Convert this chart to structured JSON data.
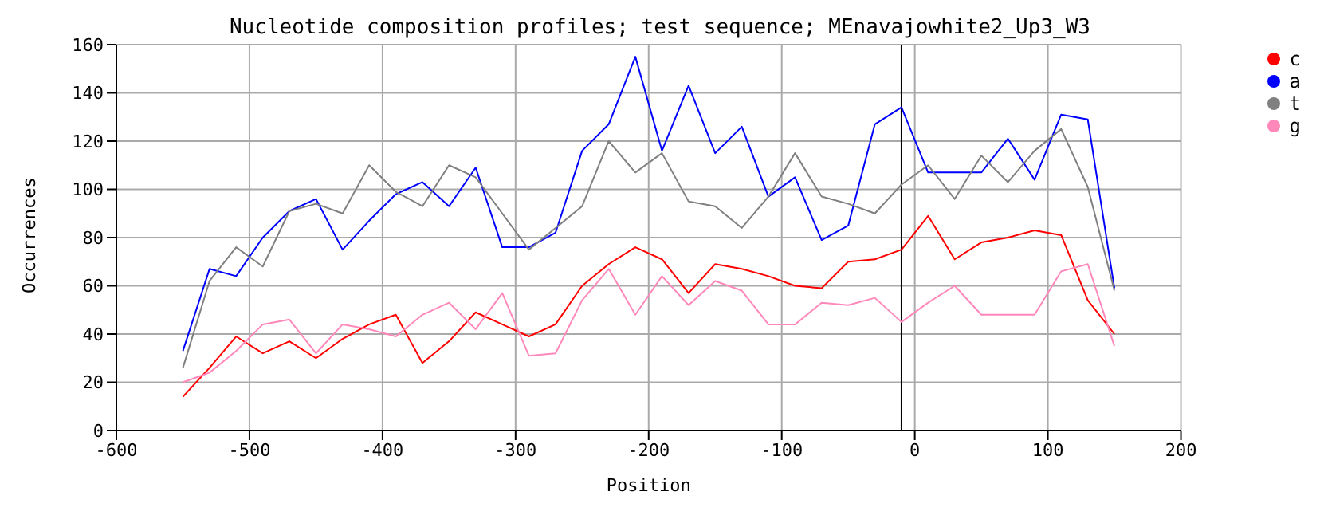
{
  "chart_data": {
    "type": "line",
    "title": "Nucleotide composition profiles; test sequence; MEnavajowhite2_Up3_W3",
    "xlabel": "Position",
    "ylabel": "Occurrences",
    "x": [
      -550,
      -530,
      -510,
      -490,
      -470,
      -450,
      -430,
      -410,
      -390,
      -370,
      -350,
      -330,
      -310,
      -290,
      -270,
      -250,
      -230,
      -210,
      -190,
      -170,
      -150,
      -130,
      -110,
      -90,
      -70,
      -50,
      -30,
      -10,
      10,
      30,
      50,
      70,
      90,
      110,
      130,
      150
    ],
    "series": [
      {
        "name": "c",
        "color": "#ff0000",
        "values": [
          14,
          26,
          39,
          32,
          37,
          30,
          38,
          44,
          48,
          28,
          37,
          49,
          44,
          39,
          44,
          60,
          69,
          76,
          71,
          57,
          69,
          67,
          64,
          60,
          59,
          70,
          71,
          75,
          89,
          71,
          78,
          80,
          83,
          81,
          54,
          40
        ]
      },
      {
        "name": "a",
        "color": "#0000ff",
        "values": [
          33,
          67,
          64,
          80,
          91,
          96,
          75,
          87,
          98,
          103,
          93,
          109,
          76,
          76,
          82,
          116,
          127,
          155,
          116,
          143,
          115,
          126,
          97,
          105,
          79,
          85,
          127,
          134,
          107,
          107,
          107,
          121,
          104,
          131,
          129,
          59
        ]
      },
      {
        "name": "t",
        "color": "#808080",
        "values": [
          26,
          62,
          76,
          68,
          91,
          94,
          90,
          110,
          99,
          93,
          110,
          105,
          90,
          75,
          84,
          93,
          120,
          107,
          115,
          95,
          93,
          84,
          97,
          115,
          97,
          94,
          90,
          102,
          110,
          96,
          114,
          103,
          116,
          125,
          101,
          58
        ]
      },
      {
        "name": "g",
        "color": "#ff88bb",
        "values": [
          20,
          24,
          33,
          44,
          46,
          32,
          44,
          42,
          39,
          48,
          53,
          42,
          57,
          31,
          32,
          54,
          67,
          48,
          64,
          52,
          62,
          58,
          44,
          44,
          53,
          52,
          55,
          45,
          53,
          60,
          48,
          48,
          48,
          66,
          69,
          35
        ]
      }
    ],
    "xlim": [
      -600,
      200
    ],
    "xticks": [
      -600,
      -500,
      -400,
      -300,
      -200,
      -100,
      0,
      100,
      200
    ],
    "ylim": [
      0,
      160
    ],
    "yticks": [
      0,
      20,
      40,
      60,
      80,
      100,
      120,
      140,
      160
    ],
    "ref_lines": [
      {
        "axis": "x",
        "value": -10,
        "color": "#000000"
      }
    ],
    "grid": true,
    "legend": "top right",
    "marker": "none",
    "line_style": "solid"
  }
}
